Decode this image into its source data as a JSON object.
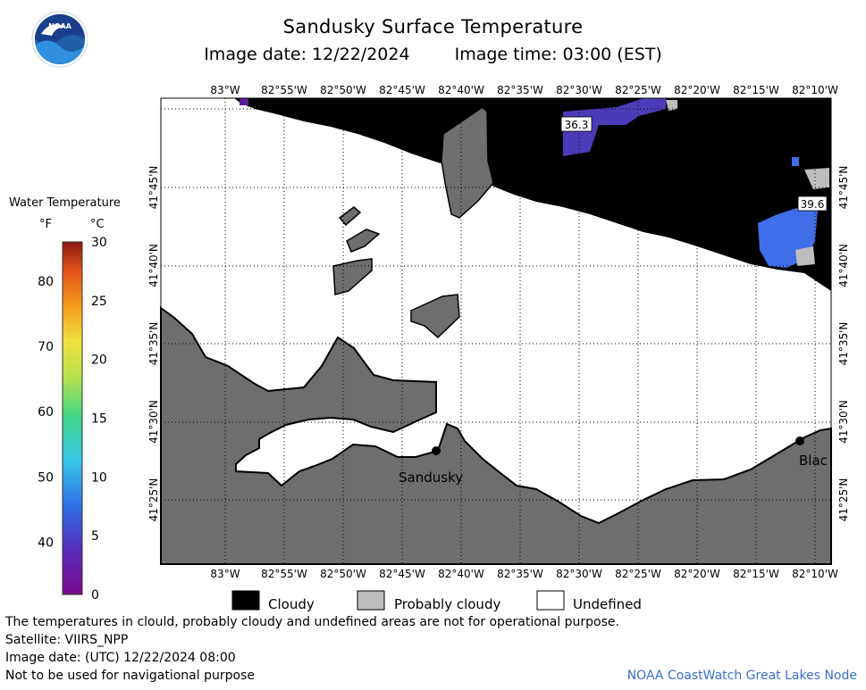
{
  "header": {
    "title": "Sandusky Surface Temperature",
    "image_date": "Image date: 12/22/2024",
    "image_time": "Image time: 03:00 (EST)"
  },
  "logo": {
    "text": "NOAA"
  },
  "legend": {
    "title": "Water Temperature",
    "unit_f": "°F",
    "unit_c": "°C",
    "f_ticks": [
      "40",
      "50",
      "60",
      "70",
      "80"
    ],
    "c_ticks": [
      "0",
      "5",
      "10",
      "15",
      "20",
      "25",
      "30"
    ]
  },
  "map": {
    "lon_labels": [
      "83°W",
      "82°55'W",
      "82°50'W",
      "82°45'W",
      "82°40'W",
      "82°35'W",
      "82°30'W",
      "82°25'W",
      "82°20'W",
      "82°15'W",
      "82°10'W"
    ],
    "lat_labels": [
      "41°45'N",
      "41°40'N",
      "41°35'N",
      "41°30'N",
      "41°25'N"
    ],
    "places": [
      "Sandusky",
      "Blac"
    ],
    "temps": [
      "36.3",
      "39.6"
    ]
  },
  "key": {
    "cloudy": "Cloudy",
    "probably_cloudy": "Probably cloudy",
    "undefined": "Undefined"
  },
  "footer": {
    "line1": "The temperatures in clould, probably cloudy and undefined areas are not for operational purpose.",
    "line2": "Satellite: VIIRS_NPP",
    "line3": "Image date: (UTC) 12/22/2024  08:00",
    "line4": "Not to be used for navigational purpose",
    "credit": "NOAA CoastWatch Great Lakes Node"
  },
  "colors": {
    "land": "#6e6e6e",
    "cloud": "#000000",
    "probably_cloudy": "#bdbdbd",
    "water_cold": "#4b3bb8",
    "water_mid": "#3f6ee8"
  }
}
